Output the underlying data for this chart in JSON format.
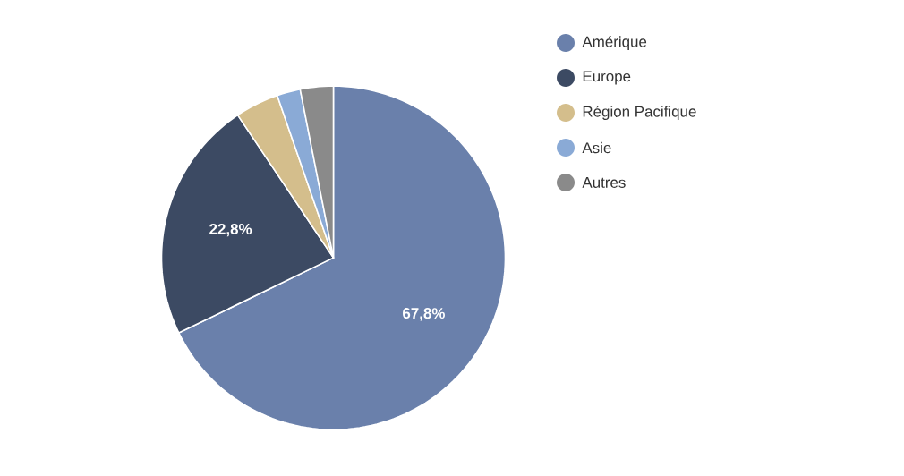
{
  "chart_data": {
    "type": "pie",
    "categories": [
      "Amérique",
      "Europe",
      "Région  Pacifique",
      "Asie",
      "Autres"
    ],
    "values": [
      67.8,
      22.8,
      4.1,
      2.2,
      3.1
    ],
    "colors": [
      "#6a80ab",
      "#3c4a63",
      "#d4be8c",
      "#8aaad6",
      "#8a8a8a"
    ],
    "value_labels": [
      "67,8%",
      "22,8%",
      null,
      null,
      null
    ],
    "legend": "right"
  }
}
